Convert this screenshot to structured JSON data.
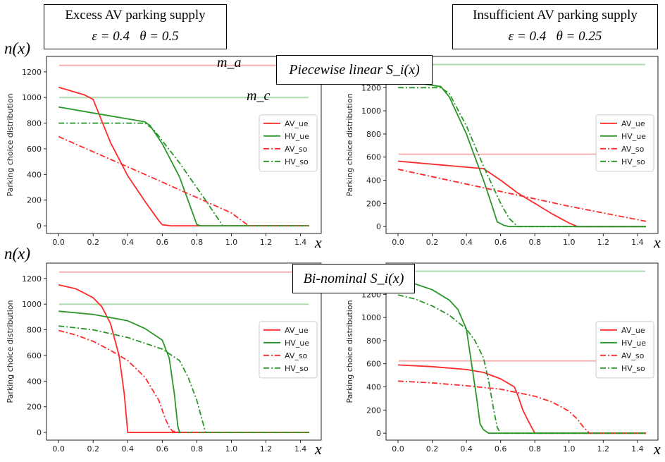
{
  "scenario_headers": {
    "left": {
      "title": "Excess AV parking supply",
      "params": "ε = 0.4   θ = 0.5"
    },
    "right": {
      "title": "Insufficient AV parking supply",
      "params": "ε = 0.4   θ = 0.25"
    }
  },
  "row_labels": {
    "top": "Piecewise linear S_i(x)",
    "bottom": "Bi-nominal S_i(x)"
  },
  "axis_symbols": {
    "n": "n(x)",
    "x": "x"
  },
  "ref_labels": {
    "ma": "m_a",
    "mc": "m_c"
  },
  "colors": {
    "av": "#ff2a2a",
    "hv": "#2a962a",
    "av_ref": "#f7b0b0",
    "hv_ref": "#aedcae"
  },
  "chart_data": [
    {
      "type": "line",
      "panel": "top-left",
      "ylabel": "Parking choice distribution",
      "xlim": [
        -0.07,
        1.52
      ],
      "ylim": [
        -60,
        1320
      ],
      "xticks": [
        0.0,
        0.2,
        0.4,
        0.6,
        0.8,
        1.0,
        1.2,
        1.4
      ],
      "yticks": [
        0,
        200,
        400,
        600,
        800,
        1000,
        1200
      ],
      "ref_lines": [
        {
          "id": "ma",
          "y": 1250
        },
        {
          "id": "mc",
          "y": 1000
        }
      ],
      "legend": "right-middle",
      "series": [
        {
          "name": "AV_ue",
          "style": "solid",
          "x": [
            0,
            0.15,
            0.2,
            0.3,
            0.4,
            0.5,
            0.58,
            0.6,
            0.65,
            1.45
          ],
          "y": [
            1080,
            1020,
            985,
            650,
            390,
            190,
            40,
            8,
            0,
            0
          ]
        },
        {
          "name": "HV_ue",
          "style": "solid",
          "x": [
            0,
            0.5,
            0.53,
            0.6,
            0.7,
            0.8,
            0.82,
            1.45
          ],
          "y": [
            925,
            810,
            780,
            640,
            380,
            10,
            0,
            0
          ]
        },
        {
          "name": "AV_so",
          "style": "dashdot",
          "x": [
            0,
            0.5,
            1.0,
            1.1,
            1.45
          ],
          "y": [
            695,
            400,
            100,
            0,
            0
          ]
        },
        {
          "name": "HV_so",
          "style": "dashdot",
          "x": [
            0,
            0.5,
            0.55,
            0.7,
            0.85,
            0.95,
            1.45
          ],
          "y": [
            800,
            800,
            750,
            490,
            200,
            0,
            0
          ]
        }
      ]
    },
    {
      "type": "line",
      "panel": "top-right",
      "ylabel": "Parking choice distribution",
      "xlim": [
        -0.07,
        1.52
      ],
      "ylim": [
        -60,
        1470
      ],
      "xticks": [
        0.0,
        0.2,
        0.4,
        0.6,
        0.8,
        1.0,
        1.2,
        1.4
      ],
      "yticks": [
        0,
        200,
        400,
        600,
        800,
        1000,
        1200
      ],
      "ref_lines": [
        {
          "id": "ma",
          "y": 625
        },
        {
          "id": "mc",
          "y": 1400
        }
      ],
      "legend": "right-middle",
      "series": [
        {
          "name": "AV_ue",
          "style": "solid",
          "x": [
            0,
            0.5,
            0.6,
            0.7,
            0.8,
            0.9,
            1.0,
            1.05,
            1.45
          ],
          "y": [
            565,
            500,
            400,
            290,
            200,
            110,
            30,
            0,
            0
          ]
        },
        {
          "name": "HV_ue",
          "style": "solid",
          "x": [
            0,
            0.25,
            0.3,
            0.4,
            0.5,
            0.55,
            0.58,
            0.62,
            0.65,
            1.45
          ],
          "y": [
            1265,
            1210,
            1120,
            800,
            400,
            180,
            40,
            10,
            0,
            0
          ]
        },
        {
          "name": "AV_so",
          "style": "dashdot",
          "x": [
            0,
            0.5,
            1.0,
            1.45
          ],
          "y": [
            495,
            335,
            175,
            45
          ]
        },
        {
          "name": "HV_so",
          "style": "dashdot",
          "x": [
            0,
            0.25,
            0.3,
            0.4,
            0.5,
            0.6,
            0.65,
            0.7,
            1.45
          ],
          "y": [
            1200,
            1200,
            1150,
            870,
            520,
            200,
            70,
            0,
            0
          ]
        }
      ]
    },
    {
      "type": "line",
      "panel": "bottom-left",
      "ylabel": "Parking choice distribution",
      "xlim": [
        -0.07,
        1.52
      ],
      "ylim": [
        -60,
        1320
      ],
      "xticks": [
        0.0,
        0.2,
        0.4,
        0.6,
        0.8,
        1.0,
        1.2,
        1.4
      ],
      "yticks": [
        0,
        200,
        400,
        600,
        800,
        1000,
        1200
      ],
      "ref_lines": [
        {
          "id": "ma",
          "y": 1250
        },
        {
          "id": "mc",
          "y": 1000
        }
      ],
      "legend": "right-middle",
      "series": [
        {
          "name": "AV_ue",
          "style": "solid",
          "x": [
            0,
            0.1,
            0.2,
            0.25,
            0.3,
            0.35,
            0.38,
            0.4,
            1.45
          ],
          "y": [
            1150,
            1120,
            1050,
            980,
            850,
            600,
            300,
            0,
            0
          ]
        },
        {
          "name": "HV_ue",
          "style": "solid",
          "x": [
            0,
            0.2,
            0.4,
            0.5,
            0.6,
            0.64,
            0.67,
            0.69,
            0.7,
            1.45
          ],
          "y": [
            945,
            920,
            870,
            810,
            720,
            580,
            300,
            50,
            0,
            0
          ]
        },
        {
          "name": "AV_so",
          "style": "dashdot",
          "x": [
            0,
            0.1,
            0.2,
            0.3,
            0.4,
            0.5,
            0.58,
            0.62,
            0.64,
            0.66,
            0.7,
            1.45
          ],
          "y": [
            795,
            760,
            710,
            640,
            560,
            430,
            250,
            100,
            40,
            10,
            0,
            0
          ]
        },
        {
          "name": "HV_so",
          "style": "dashdot",
          "x": [
            0,
            0.2,
            0.4,
            0.6,
            0.7,
            0.75,
            0.8,
            0.83,
            0.85,
            1.45
          ],
          "y": [
            830,
            800,
            740,
            650,
            560,
            430,
            250,
            100,
            0,
            0
          ]
        }
      ]
    },
    {
      "type": "line",
      "panel": "bottom-right",
      "ylabel": "Parking choice distribution",
      "xlim": [
        -0.07,
        1.52
      ],
      "ylim": [
        -60,
        1470
      ],
      "xticks": [
        0.0,
        0.2,
        0.4,
        0.6,
        0.8,
        1.0,
        1.2,
        1.4
      ],
      "yticks": [
        0,
        200,
        400,
        600,
        800,
        1000,
        1200
      ],
      "ref_lines": [
        {
          "id": "ma",
          "y": 625
        },
        {
          "id": "mc",
          "y": 1400
        }
      ],
      "legend": "right-middle",
      "series": [
        {
          "name": "AV_ue",
          "style": "solid",
          "x": [
            0,
            0.2,
            0.4,
            0.5,
            0.6,
            0.68,
            0.7,
            0.73,
            0.76,
            0.8,
            1.45
          ],
          "y": [
            590,
            575,
            550,
            525,
            470,
            400,
            330,
            200,
            110,
            0,
            0
          ]
        },
        {
          "name": "HV_ue",
          "style": "solid",
          "x": [
            0,
            0.1,
            0.2,
            0.3,
            0.35,
            0.4,
            0.43,
            0.46,
            0.48,
            0.5,
            0.53,
            1.45
          ],
          "y": [
            1310,
            1290,
            1240,
            1150,
            1070,
            900,
            600,
            300,
            80,
            30,
            0,
            0
          ]
        },
        {
          "name": "AV_so",
          "style": "dashdot",
          "x": [
            0,
            0.2,
            0.4,
            0.6,
            0.8,
            0.9,
            1.0,
            1.05,
            1.08,
            1.1,
            1.12,
            1.45
          ],
          "y": [
            450,
            435,
            410,
            380,
            320,
            270,
            190,
            120,
            60,
            30,
            0,
            0
          ]
        },
        {
          "name": "HV_so",
          "style": "dashdot",
          "x": [
            0,
            0.1,
            0.2,
            0.3,
            0.4,
            0.45,
            0.5,
            0.53,
            0.56,
            0.58,
            0.6,
            1.45
          ],
          "y": [
            1195,
            1160,
            1100,
            1020,
            900,
            800,
            650,
            450,
            200,
            50,
            0,
            0
          ]
        }
      ]
    }
  ]
}
